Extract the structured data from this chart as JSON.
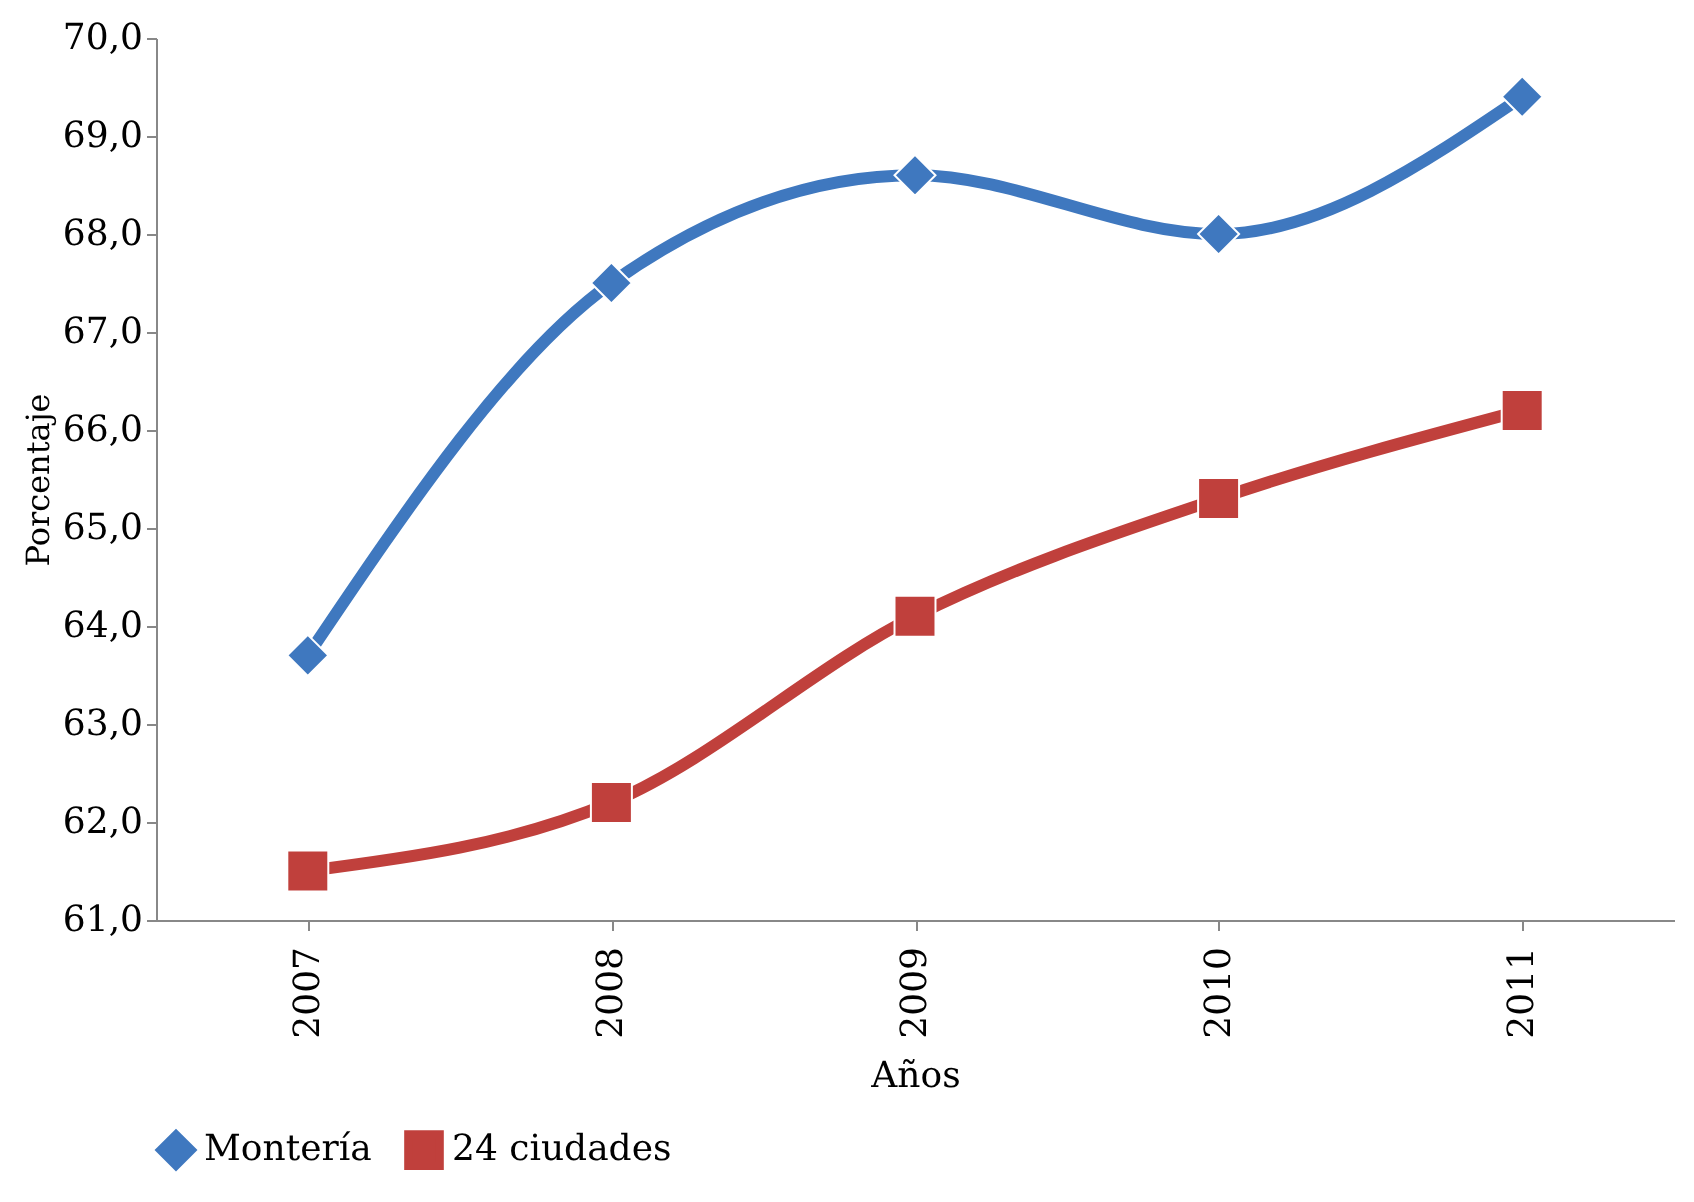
{
  "chart_data": {
    "type": "line",
    "xlabel": "Años",
    "ylabel": "Porcentaje",
    "categories": [
      "2007",
      "2008",
      "2009",
      "2010",
      "2011"
    ],
    "series": [
      {
        "name": "Montería",
        "color": "#3f78bf",
        "marker": "diamond",
        "values": [
          63.7,
          67.5,
          68.6,
          68.0,
          69.4
        ]
      },
      {
        "name": "24 ciudades",
        "color": "#c0403c",
        "marker": "square",
        "values": [
          61.5,
          62.2,
          64.1,
          65.3,
          66.2
        ]
      }
    ],
    "ylim": [
      61,
      70
    ],
    "yticks": [
      {
        "value": 61,
        "label": "61,0"
      },
      {
        "value": 62,
        "label": "62,0"
      },
      {
        "value": 63,
        "label": "63,0"
      },
      {
        "value": 64,
        "label": "64,0"
      },
      {
        "value": 65,
        "label": "65,0"
      },
      {
        "value": 66,
        "label": "66,0"
      },
      {
        "value": 67,
        "label": "67,0"
      },
      {
        "value": 68,
        "label": "68,0"
      },
      {
        "value": 69,
        "label": "69,0"
      },
      {
        "value": 70,
        "label": "70,0"
      }
    ],
    "grid": false,
    "legend": "bottom",
    "line_style": "solid"
  }
}
